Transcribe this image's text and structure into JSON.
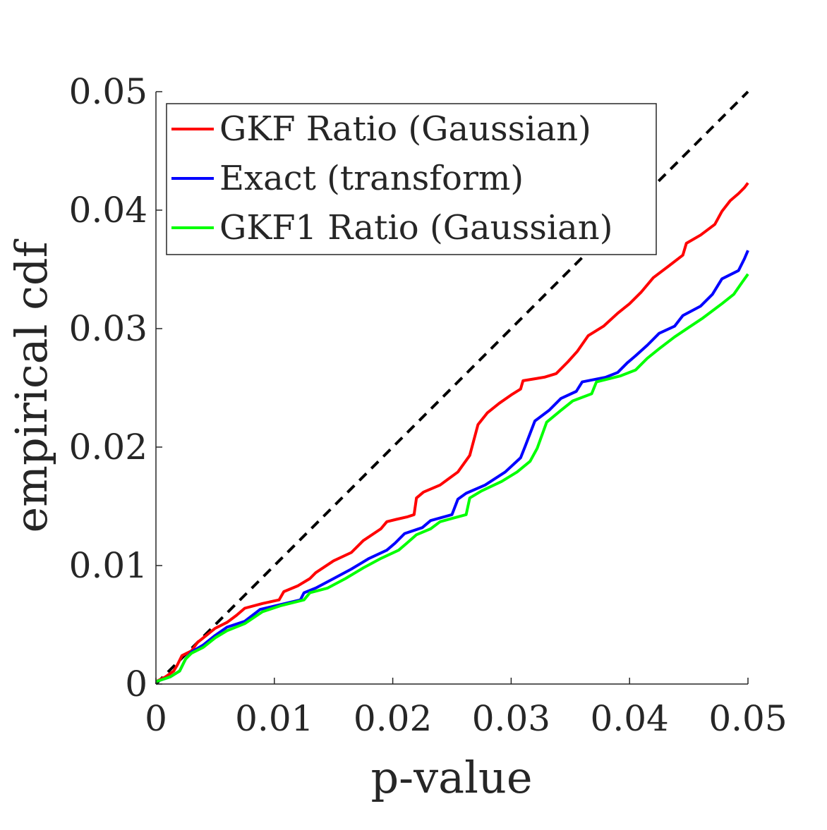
{
  "chart_data": {
    "type": "line",
    "title": "",
    "xlabel": "p-value",
    "ylabel": "empirical cdf",
    "xlim": [
      0,
      0.05
    ],
    "ylim": [
      0,
      0.05
    ],
    "xticks": [
      "0",
      "0.01",
      "0.02",
      "0.03",
      "0.04",
      "0.05"
    ],
    "yticks": [
      "0",
      "0.01",
      "0.02",
      "0.03",
      "0.04",
      "0.05"
    ],
    "grid": false,
    "legend_position": "top-left",
    "reference_line": {
      "style": "dashed",
      "color": "#000000",
      "points": [
        [
          0,
          0
        ],
        [
          0.05,
          0.05
        ]
      ]
    },
    "series": [
      {
        "name": "GKF Ratio (Gaussian)",
        "color": "#ff0000",
        "points": [
          [
            0,
            0.0002
          ],
          [
            0.0008,
            0.0006
          ],
          [
            0.0015,
            0.0011
          ],
          [
            0.0018,
            0.0016
          ],
          [
            0.0022,
            0.0024
          ],
          [
            0.003,
            0.0028
          ],
          [
            0.0035,
            0.0035
          ],
          [
            0.004,
            0.0039
          ],
          [
            0.005,
            0.0047
          ],
          [
            0.006,
            0.0052
          ],
          [
            0.0068,
            0.0058
          ],
          [
            0.0075,
            0.0064
          ],
          [
            0.009,
            0.0068
          ],
          [
            0.0104,
            0.0071
          ],
          [
            0.0108,
            0.0078
          ],
          [
            0.012,
            0.0083
          ],
          [
            0.013,
            0.0089
          ],
          [
            0.0135,
            0.0094
          ],
          [
            0.015,
            0.0104
          ],
          [
            0.0165,
            0.0111
          ],
          [
            0.0175,
            0.0121
          ],
          [
            0.019,
            0.0131
          ],
          [
            0.0195,
            0.0137
          ],
          [
            0.0203,
            0.0139
          ],
          [
            0.0212,
            0.0141
          ],
          [
            0.0218,
            0.0143
          ],
          [
            0.022,
            0.0157
          ],
          [
            0.0226,
            0.0162
          ],
          [
            0.024,
            0.0168
          ],
          [
            0.0255,
            0.0179
          ],
          [
            0.0265,
            0.0193
          ],
          [
            0.0272,
            0.0219
          ],
          [
            0.028,
            0.0229
          ],
          [
            0.029,
            0.0237
          ],
          [
            0.03,
            0.0244
          ],
          [
            0.0308,
            0.0249
          ],
          [
            0.031,
            0.0256
          ],
          [
            0.0328,
            0.0259
          ],
          [
            0.0338,
            0.0262
          ],
          [
            0.0348,
            0.0272
          ],
          [
            0.0356,
            0.0281
          ],
          [
            0.0365,
            0.0294
          ],
          [
            0.0378,
            0.0302
          ],
          [
            0.039,
            0.0313
          ],
          [
            0.04,
            0.0321
          ],
          [
            0.041,
            0.0331
          ],
          [
            0.042,
            0.0343
          ],
          [
            0.0432,
            0.0352
          ],
          [
            0.0445,
            0.0362
          ],
          [
            0.0448,
            0.0372
          ],
          [
            0.046,
            0.0379
          ],
          [
            0.0472,
            0.0388
          ],
          [
            0.0478,
            0.0399
          ],
          [
            0.0485,
            0.0408
          ],
          [
            0.0492,
            0.0414
          ],
          [
            0.0497,
            0.0419
          ],
          [
            0.05,
            0.0423
          ]
        ]
      },
      {
        "name": "Exact (transform)",
        "color": "#0000ff",
        "points": [
          [
            0,
            0.0002
          ],
          [
            0.0012,
            0.0006
          ],
          [
            0.002,
            0.0011
          ],
          [
            0.0025,
            0.0021
          ],
          [
            0.003,
            0.0027
          ],
          [
            0.004,
            0.0033
          ],
          [
            0.005,
            0.0041
          ],
          [
            0.006,
            0.0048
          ],
          [
            0.0075,
            0.0053
          ],
          [
            0.0088,
            0.0063
          ],
          [
            0.0105,
            0.0067
          ],
          [
            0.0122,
            0.0071
          ],
          [
            0.0125,
            0.0077
          ],
          [
            0.0135,
            0.0081
          ],
          [
            0.015,
            0.0089
          ],
          [
            0.0165,
            0.0097
          ],
          [
            0.018,
            0.0106
          ],
          [
            0.0195,
            0.0113
          ],
          [
            0.0202,
            0.0119
          ],
          [
            0.021,
            0.0127
          ],
          [
            0.0225,
            0.0132
          ],
          [
            0.0232,
            0.0138
          ],
          [
            0.025,
            0.0143
          ],
          [
            0.0255,
            0.0156
          ],
          [
            0.0262,
            0.0161
          ],
          [
            0.0278,
            0.0168
          ],
          [
            0.0295,
            0.0179
          ],
          [
            0.0308,
            0.0191
          ],
          [
            0.0312,
            0.0201
          ],
          [
            0.032,
            0.0222
          ],
          [
            0.0332,
            0.0231
          ],
          [
            0.0342,
            0.0241
          ],
          [
            0.0355,
            0.0247
          ],
          [
            0.036,
            0.0255
          ],
          [
            0.038,
            0.0259
          ],
          [
            0.039,
            0.0263
          ],
          [
            0.0398,
            0.0271
          ],
          [
            0.0405,
            0.0277
          ],
          [
            0.0415,
            0.0286
          ],
          [
            0.0425,
            0.0296
          ],
          [
            0.0438,
            0.0302
          ],
          [
            0.0445,
            0.0311
          ],
          [
            0.046,
            0.0319
          ],
          [
            0.047,
            0.0329
          ],
          [
            0.0478,
            0.0342
          ],
          [
            0.0492,
            0.0349
          ],
          [
            0.0497,
            0.0359
          ],
          [
            0.05,
            0.0366
          ]
        ]
      },
      {
        "name": "GKF1 Ratio (Gaussian)",
        "color": "#00ff00",
        "points": [
          [
            0,
            0.0002
          ],
          [
            0.0012,
            0.0006
          ],
          [
            0.002,
            0.0011
          ],
          [
            0.0025,
            0.0021
          ],
          [
            0.003,
            0.0026
          ],
          [
            0.004,
            0.0031
          ],
          [
            0.005,
            0.0039
          ],
          [
            0.006,
            0.0045
          ],
          [
            0.0075,
            0.0051
          ],
          [
            0.009,
            0.0061
          ],
          [
            0.0105,
            0.0066
          ],
          [
            0.0125,
            0.0071
          ],
          [
            0.013,
            0.0077
          ],
          [
            0.0145,
            0.0081
          ],
          [
            0.016,
            0.0089
          ],
          [
            0.0175,
            0.0098
          ],
          [
            0.019,
            0.0106
          ],
          [
            0.0205,
            0.0113
          ],
          [
            0.0212,
            0.0119
          ],
          [
            0.022,
            0.0126
          ],
          [
            0.0232,
            0.0131
          ],
          [
            0.024,
            0.0137
          ],
          [
            0.0262,
            0.0143
          ],
          [
            0.0265,
            0.0157
          ],
          [
            0.0275,
            0.0163
          ],
          [
            0.0292,
            0.0171
          ],
          [
            0.0305,
            0.0179
          ],
          [
            0.0316,
            0.0188
          ],
          [
            0.0322,
            0.0199
          ],
          [
            0.033,
            0.0221
          ],
          [
            0.0342,
            0.0231
          ],
          [
            0.0352,
            0.0239
          ],
          [
            0.0368,
            0.0245
          ],
          [
            0.0372,
            0.0255
          ],
          [
            0.0392,
            0.026
          ],
          [
            0.0405,
            0.0265
          ],
          [
            0.0415,
            0.0275
          ],
          [
            0.0425,
            0.0283
          ],
          [
            0.0438,
            0.0293
          ],
          [
            0.045,
            0.0301
          ],
          [
            0.0462,
            0.0309
          ],
          [
            0.0478,
            0.0321
          ],
          [
            0.0488,
            0.0329
          ],
          [
            0.0495,
            0.0339
          ],
          [
            0.05,
            0.0346
          ]
        ]
      }
    ]
  }
}
